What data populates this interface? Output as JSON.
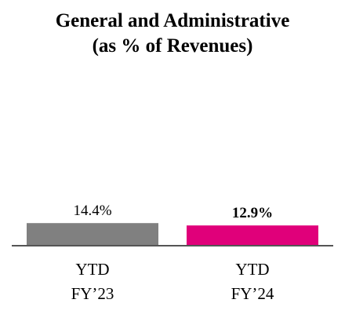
{
  "chart_data": {
    "type": "bar",
    "title": [
      "General and Administrative",
      "(as % of Revenues)"
    ],
    "categories": [
      {
        "line1": "YTD",
        "line2": "FY’23"
      },
      {
        "line1": "YTD",
        "line2": "FY’24"
      }
    ],
    "values": [
      14.4,
      12.9
    ],
    "data_labels": [
      "14.4%",
      "12.9%"
    ],
    "data_label_bold": [
      false,
      true
    ],
    "colors": [
      "#808080",
      "#e0007a"
    ],
    "axis_color": "#555555",
    "ylim": [
      0,
      100
    ],
    "grid": false,
    "legend": "none"
  }
}
